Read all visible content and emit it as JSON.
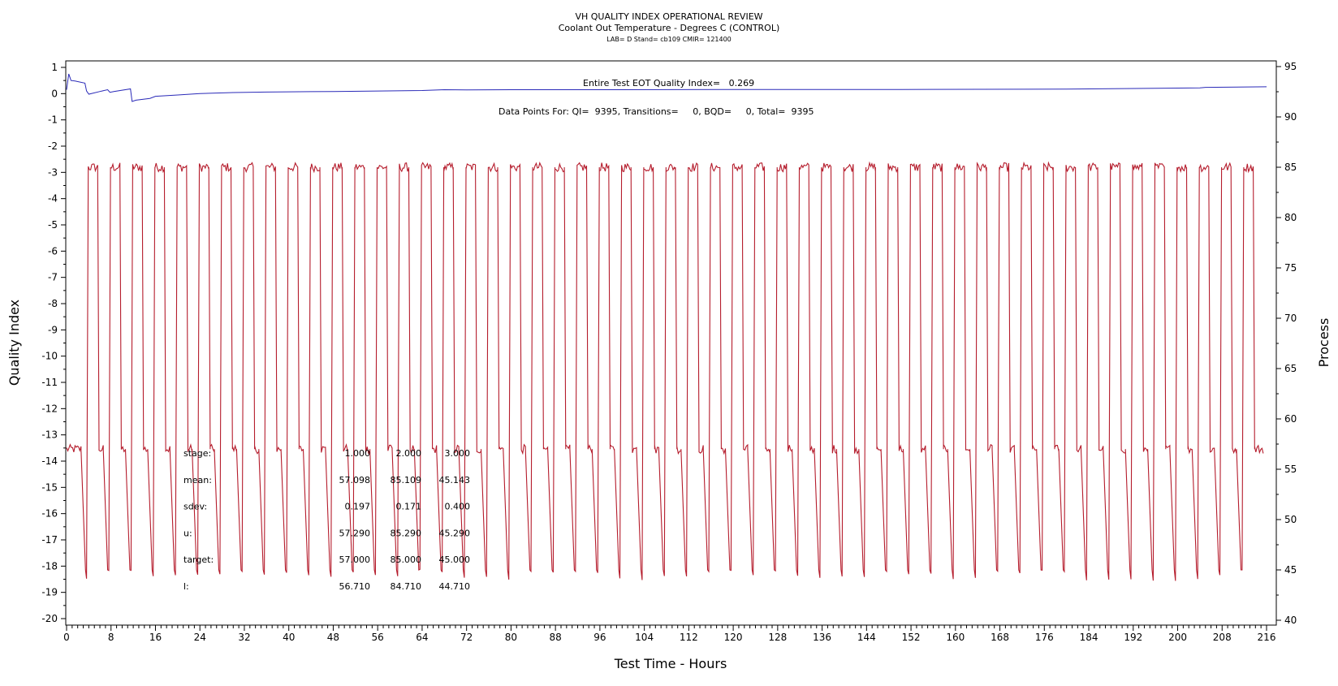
{
  "chart_data": {
    "type": "line",
    "title": "VH QUALITY INDEX OPERATIONAL REVIEW",
    "subtitle": "Coolant Out Temperature - Degrees C (CONTROL)",
    "subtitle2": "LAB= D Stand= cb109 CMIR= 121400",
    "xlabel": "Test Time - Hours",
    "ylabel_left": "Quality Index",
    "ylabel_right": "Process",
    "xlim": [
      0,
      216
    ],
    "ylim_left": [
      -20,
      1
    ],
    "ylim_right": [
      40,
      95
    ],
    "x_ticks": [
      0,
      8,
      16,
      24,
      32,
      40,
      48,
      56,
      64,
      72,
      80,
      88,
      96,
      104,
      112,
      120,
      128,
      136,
      144,
      152,
      160,
      168,
      176,
      184,
      192,
      200,
      208,
      216
    ],
    "y_ticks_left": [
      1,
      0,
      -1,
      -2,
      -3,
      -4,
      -5,
      -6,
      -7,
      -8,
      -9,
      -10,
      -11,
      -12,
      -13,
      -14,
      -15,
      -16,
      -17,
      -18,
      -19,
      -20
    ],
    "y_ticks_right": [
      95,
      90,
      85,
      80,
      75,
      70,
      65,
      60,
      55,
      50,
      45,
      40
    ],
    "grid": false,
    "annotations": {
      "quality_index": "Entire Test EOT Quality Index=   0.269",
      "data_points": "Data Points For: QI=  9395, Transitions=     0, BQD=     0, Total=  9395"
    },
    "stats_table": {
      "rows": [
        {
          "label": "stage:",
          "values": [
            "1.000",
            "2.000",
            "3.000"
          ]
        },
        {
          "label": "mean:",
          "values": [
            "57.098",
            "85.109",
            "45.143"
          ]
        },
        {
          "label": "sdev:",
          "values": [
            "0.197",
            "0.171",
            "0.400"
          ]
        },
        {
          "label": "u:",
          "values": [
            "57.290",
            "85.290",
            "45.290"
          ]
        },
        {
          "label": "target:",
          "values": [
            "57.000",
            "85.000",
            "45.000"
          ]
        },
        {
          "label": "l:",
          "values": [
            "56.710",
            "84.710",
            "44.710"
          ]
        }
      ]
    },
    "series": [
      {
        "axis": "left",
        "color": "#2a2ab8",
        "x": [
          0,
          0.4,
          0.8,
          1.5,
          3.3,
          3.6,
          4.0,
          6.0,
          7.4,
          7.8,
          8.5,
          11.5,
          11.8,
          12.5,
          15.0,
          16.0,
          20.0,
          24.0,
          30.0,
          36.0,
          40.0,
          48.0,
          56.0,
          64.0,
          68.0,
          72.0,
          80.0,
          96.0,
          120.0,
          150.0,
          180.0,
          204.0,
          205.0,
          216.0
        ],
        "y": [
          0.15,
          0.75,
          0.5,
          0.48,
          0.4,
          0.1,
          -0.02,
          0.08,
          0.15,
          0.05,
          0.08,
          0.18,
          -0.3,
          -0.25,
          -0.18,
          -0.1,
          -0.05,
          0.0,
          0.04,
          0.06,
          0.07,
          0.08,
          0.1,
          0.12,
          0.15,
          0.14,
          0.15,
          0.15,
          0.16,
          0.16,
          0.17,
          0.22,
          0.24,
          0.26
        ]
      },
      {
        "axis": "right",
        "color": "#b51c2c",
        "cycle_start_hours": [
          2.6,
          6.6,
          10.6,
          14.6,
          18.6,
          22.6,
          26.6,
          30.6,
          34.6,
          38.6,
          42.6,
          46.6,
          50.6,
          54.6,
          58.6,
          62.6,
          66.6,
          70.6,
          74.6,
          78.6,
          82.6,
          86.6,
          90.6,
          94.6,
          98.6,
          102.6,
          106.6,
          110.6,
          114.6,
          118.6,
          122.6,
          126.6,
          130.6,
          134.6,
          138.6,
          142.6,
          146.6,
          150.6,
          154.6,
          158.6,
          162.6,
          166.6,
          170.6,
          174.6,
          178.6,
          182.6,
          186.6,
          190.6,
          194.6,
          198.6,
          202.6,
          206.6,
          210.6
        ],
        "cycle_profile": {
          "hour_offsets": [
            0,
            0.8,
            1.0,
            1.3,
            3.0,
            3.25
          ],
          "values": [
            57,
            45,
            44.5,
            85,
            85,
            57
          ]
        }
      }
    ]
  }
}
